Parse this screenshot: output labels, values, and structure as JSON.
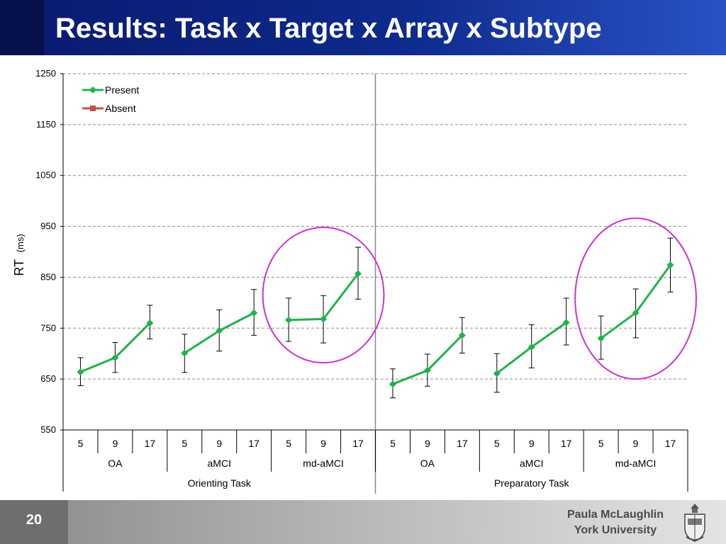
{
  "slide": {
    "title": "Results: Task x Target x Array x Subtype",
    "slide_number": "20",
    "presenter_name": "Paula McLaughlin",
    "presenter_affiliation": "York University",
    "logo_icon": "university-crest-icon"
  },
  "colors": {
    "present": "#22b14c",
    "absent": "#c0504d",
    "highlight": "#cc33cc",
    "title_bg": "#0d2a8c"
  },
  "chart_data": {
    "type": "line",
    "ylabel": "RT",
    "ylabel_unit": "(ms)",
    "ylim": [
      550,
      1250
    ],
    "yticks": [
      550,
      650,
      750,
      850,
      950,
      1050,
      1150,
      1250
    ],
    "grid": "dashed horizontal",
    "legend": {
      "position": "top-left",
      "entries": [
        "Present",
        "Absent"
      ]
    },
    "tasks": [
      {
        "label": "Orienting Task",
        "groups": [
          {
            "label": "OA",
            "arrays": [
              "5",
              "9",
              "17"
            ],
            "values": [
              664,
              692,
              760
            ],
            "err_low": [
              637,
              663,
              729
            ],
            "err_high": [
              692,
              722,
              795
            ]
          },
          {
            "label": "aMCI",
            "arrays": [
              "5",
              "9",
              "17"
            ],
            "values": [
              701,
              745,
              780
            ],
            "err_low": [
              663,
              705,
              736
            ],
            "err_high": [
              738,
              786,
              826
            ]
          },
          {
            "label": "md-aMCI",
            "arrays": [
              "5",
              "9",
              "17"
            ],
            "values": [
              766,
              768,
              857
            ],
            "err_low": [
              724,
              721,
              807
            ],
            "err_high": [
              809,
              814,
              909
            ]
          }
        ]
      },
      {
        "label": "Preparatory Task",
        "groups": [
          {
            "label": "OA",
            "arrays": [
              "5",
              "9",
              "17"
            ],
            "values": [
              640,
              667,
              736
            ],
            "err_low": [
              613,
              636,
              701
            ],
            "err_high": [
              670,
              699,
              771
            ]
          },
          {
            "label": "aMCI",
            "arrays": [
              "5",
              "9",
              "17"
            ],
            "values": [
              661,
              713,
              761
            ],
            "err_low": [
              624,
              672,
              717
            ],
            "err_high": [
              700,
              757,
              809
            ]
          },
          {
            "label": "md-aMCI",
            "arrays": [
              "5",
              "9",
              "17"
            ],
            "values": [
              730,
              780,
              874
            ],
            "err_low": [
              689,
              731,
              821
            ],
            "err_high": [
              774,
              827,
              927
            ]
          }
        ]
      }
    ],
    "series": [
      {
        "name": "Present",
        "color": "#22b14c"
      },
      {
        "name": "Absent",
        "color": "#c0504d"
      }
    ],
    "annotations": [
      "ellipse highlighting Orienting Task md-aMCI",
      "ellipse highlighting Preparatory Task md-aMCI"
    ]
  }
}
